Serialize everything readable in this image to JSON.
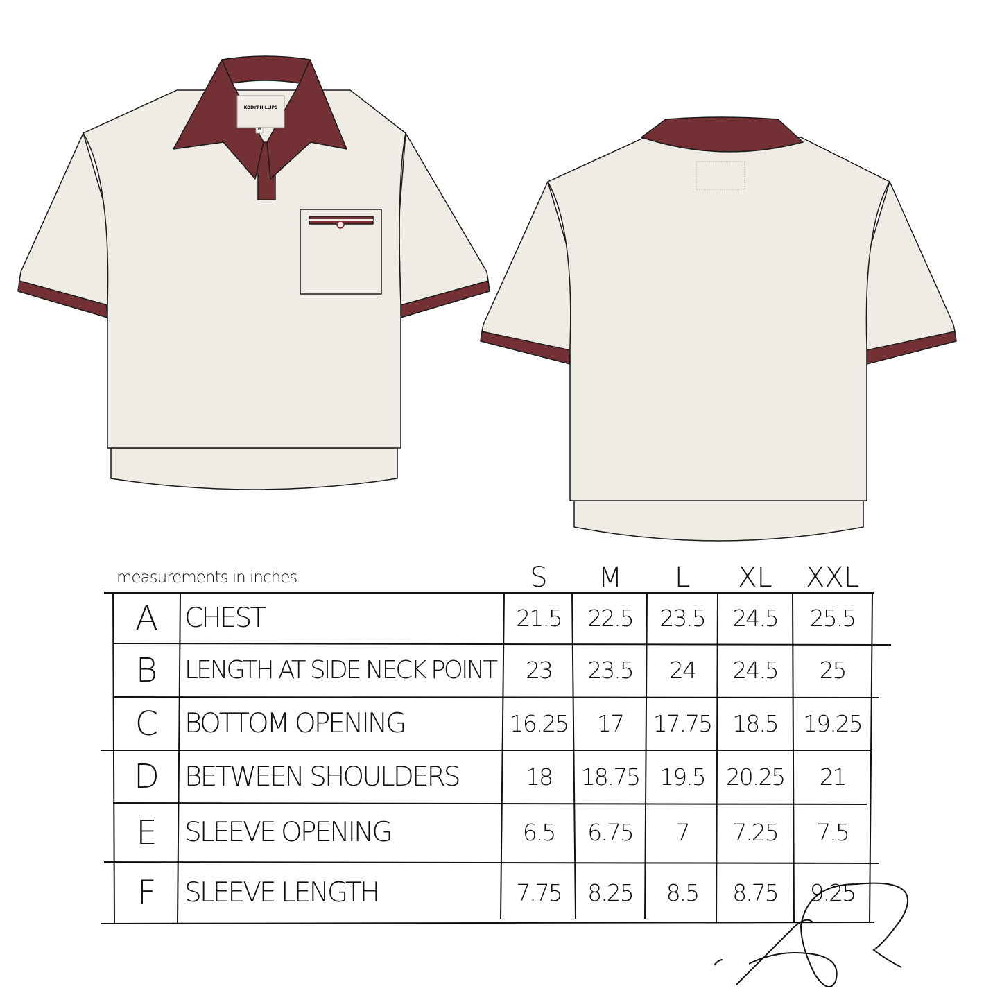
{
  "brand_label": "KODYPHILLIPS",
  "size_tag": "M",
  "colors": {
    "body": "#EEECE4",
    "trim": "#733035",
    "outline": "#1a1a1a"
  },
  "table": {
    "units_label": "measurements in inches",
    "sizes": [
      "S",
      "M",
      "L",
      "XL",
      "XXL"
    ],
    "rows": [
      {
        "letter": "A",
        "name": "CHEST",
        "values": [
          "21.5",
          "22.5",
          "23.5",
          "24.5",
          "25.5"
        ]
      },
      {
        "letter": "B",
        "name": "LENGTH AT SIDE NECK POINT",
        "values": [
          "23",
          "23.5",
          "24",
          "24.5",
          "25"
        ]
      },
      {
        "letter": "C",
        "name": "BOTTOM OPENING",
        "values": [
          "16.25",
          "17",
          "17.75",
          "18.5",
          "19.25"
        ]
      },
      {
        "letter": "D",
        "name": "BETWEEN SHOULDERS",
        "values": [
          "18",
          "18.75",
          "19.5",
          "20.25",
          "21"
        ]
      },
      {
        "letter": "E",
        "name": "SLEEVE OPENING",
        "values": [
          "6.5",
          "6.75",
          "7",
          "7.25",
          "7.5"
        ]
      },
      {
        "letter": "F",
        "name": "SLEEVE LENGTH",
        "values": [
          "7.75",
          "8.25",
          "8.5",
          "8.75",
          "9.25"
        ]
      }
    ]
  }
}
